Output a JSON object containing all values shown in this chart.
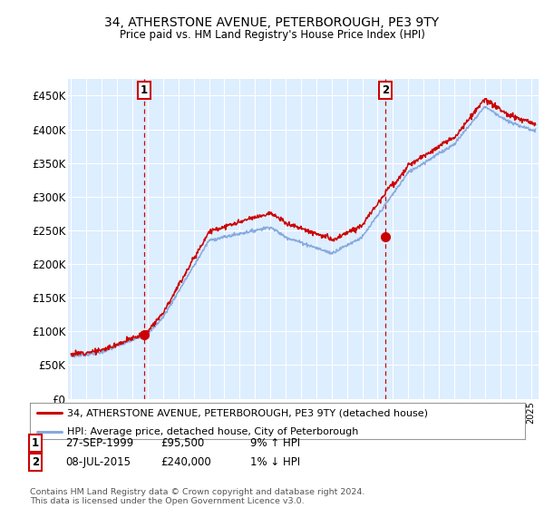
{
  "title": "34, ATHERSTONE AVENUE, PETERBOROUGH, PE3 9TY",
  "subtitle": "Price paid vs. HM Land Registry's House Price Index (HPI)",
  "ylabel_ticks": [
    "£0",
    "£50K",
    "£100K",
    "£150K",
    "£200K",
    "£250K",
    "£300K",
    "£350K",
    "£400K",
    "£450K"
  ],
  "ytick_vals": [
    0,
    50000,
    100000,
    150000,
    200000,
    250000,
    300000,
    350000,
    400000,
    450000
  ],
  "ylim": [
    0,
    475000
  ],
  "xlim_start": 1994.8,
  "xlim_end": 2025.5,
  "purchase1_x": 1999.75,
  "purchase1_y": 95500,
  "purchase2_x": 2015.5,
  "purchase2_y": 240000,
  "line_red_color": "#cc0000",
  "line_blue_color": "#88aadd",
  "bg_color": "#ddeeff",
  "grid_color": "#ffffff",
  "legend_line1": "34, ATHERSTONE AVENUE, PETERBOROUGH, PE3 9TY (detached house)",
  "legend_line2": "HPI: Average price, detached house, City of Peterborough",
  "purchase1_label": "1",
  "purchase1_date": "27-SEP-1999",
  "purchase1_price": "£95,500",
  "purchase1_hpi": "9% ↑ HPI",
  "purchase2_label": "2",
  "purchase2_date": "08-JUL-2015",
  "purchase2_price": "£240,000",
  "purchase2_hpi": "1% ↓ HPI",
  "marker_box_color": "#cc0000",
  "dashed_line_color": "#cc0000",
  "footer": "Contains HM Land Registry data © Crown copyright and database right 2024.\nThis data is licensed under the Open Government Licence v3.0."
}
